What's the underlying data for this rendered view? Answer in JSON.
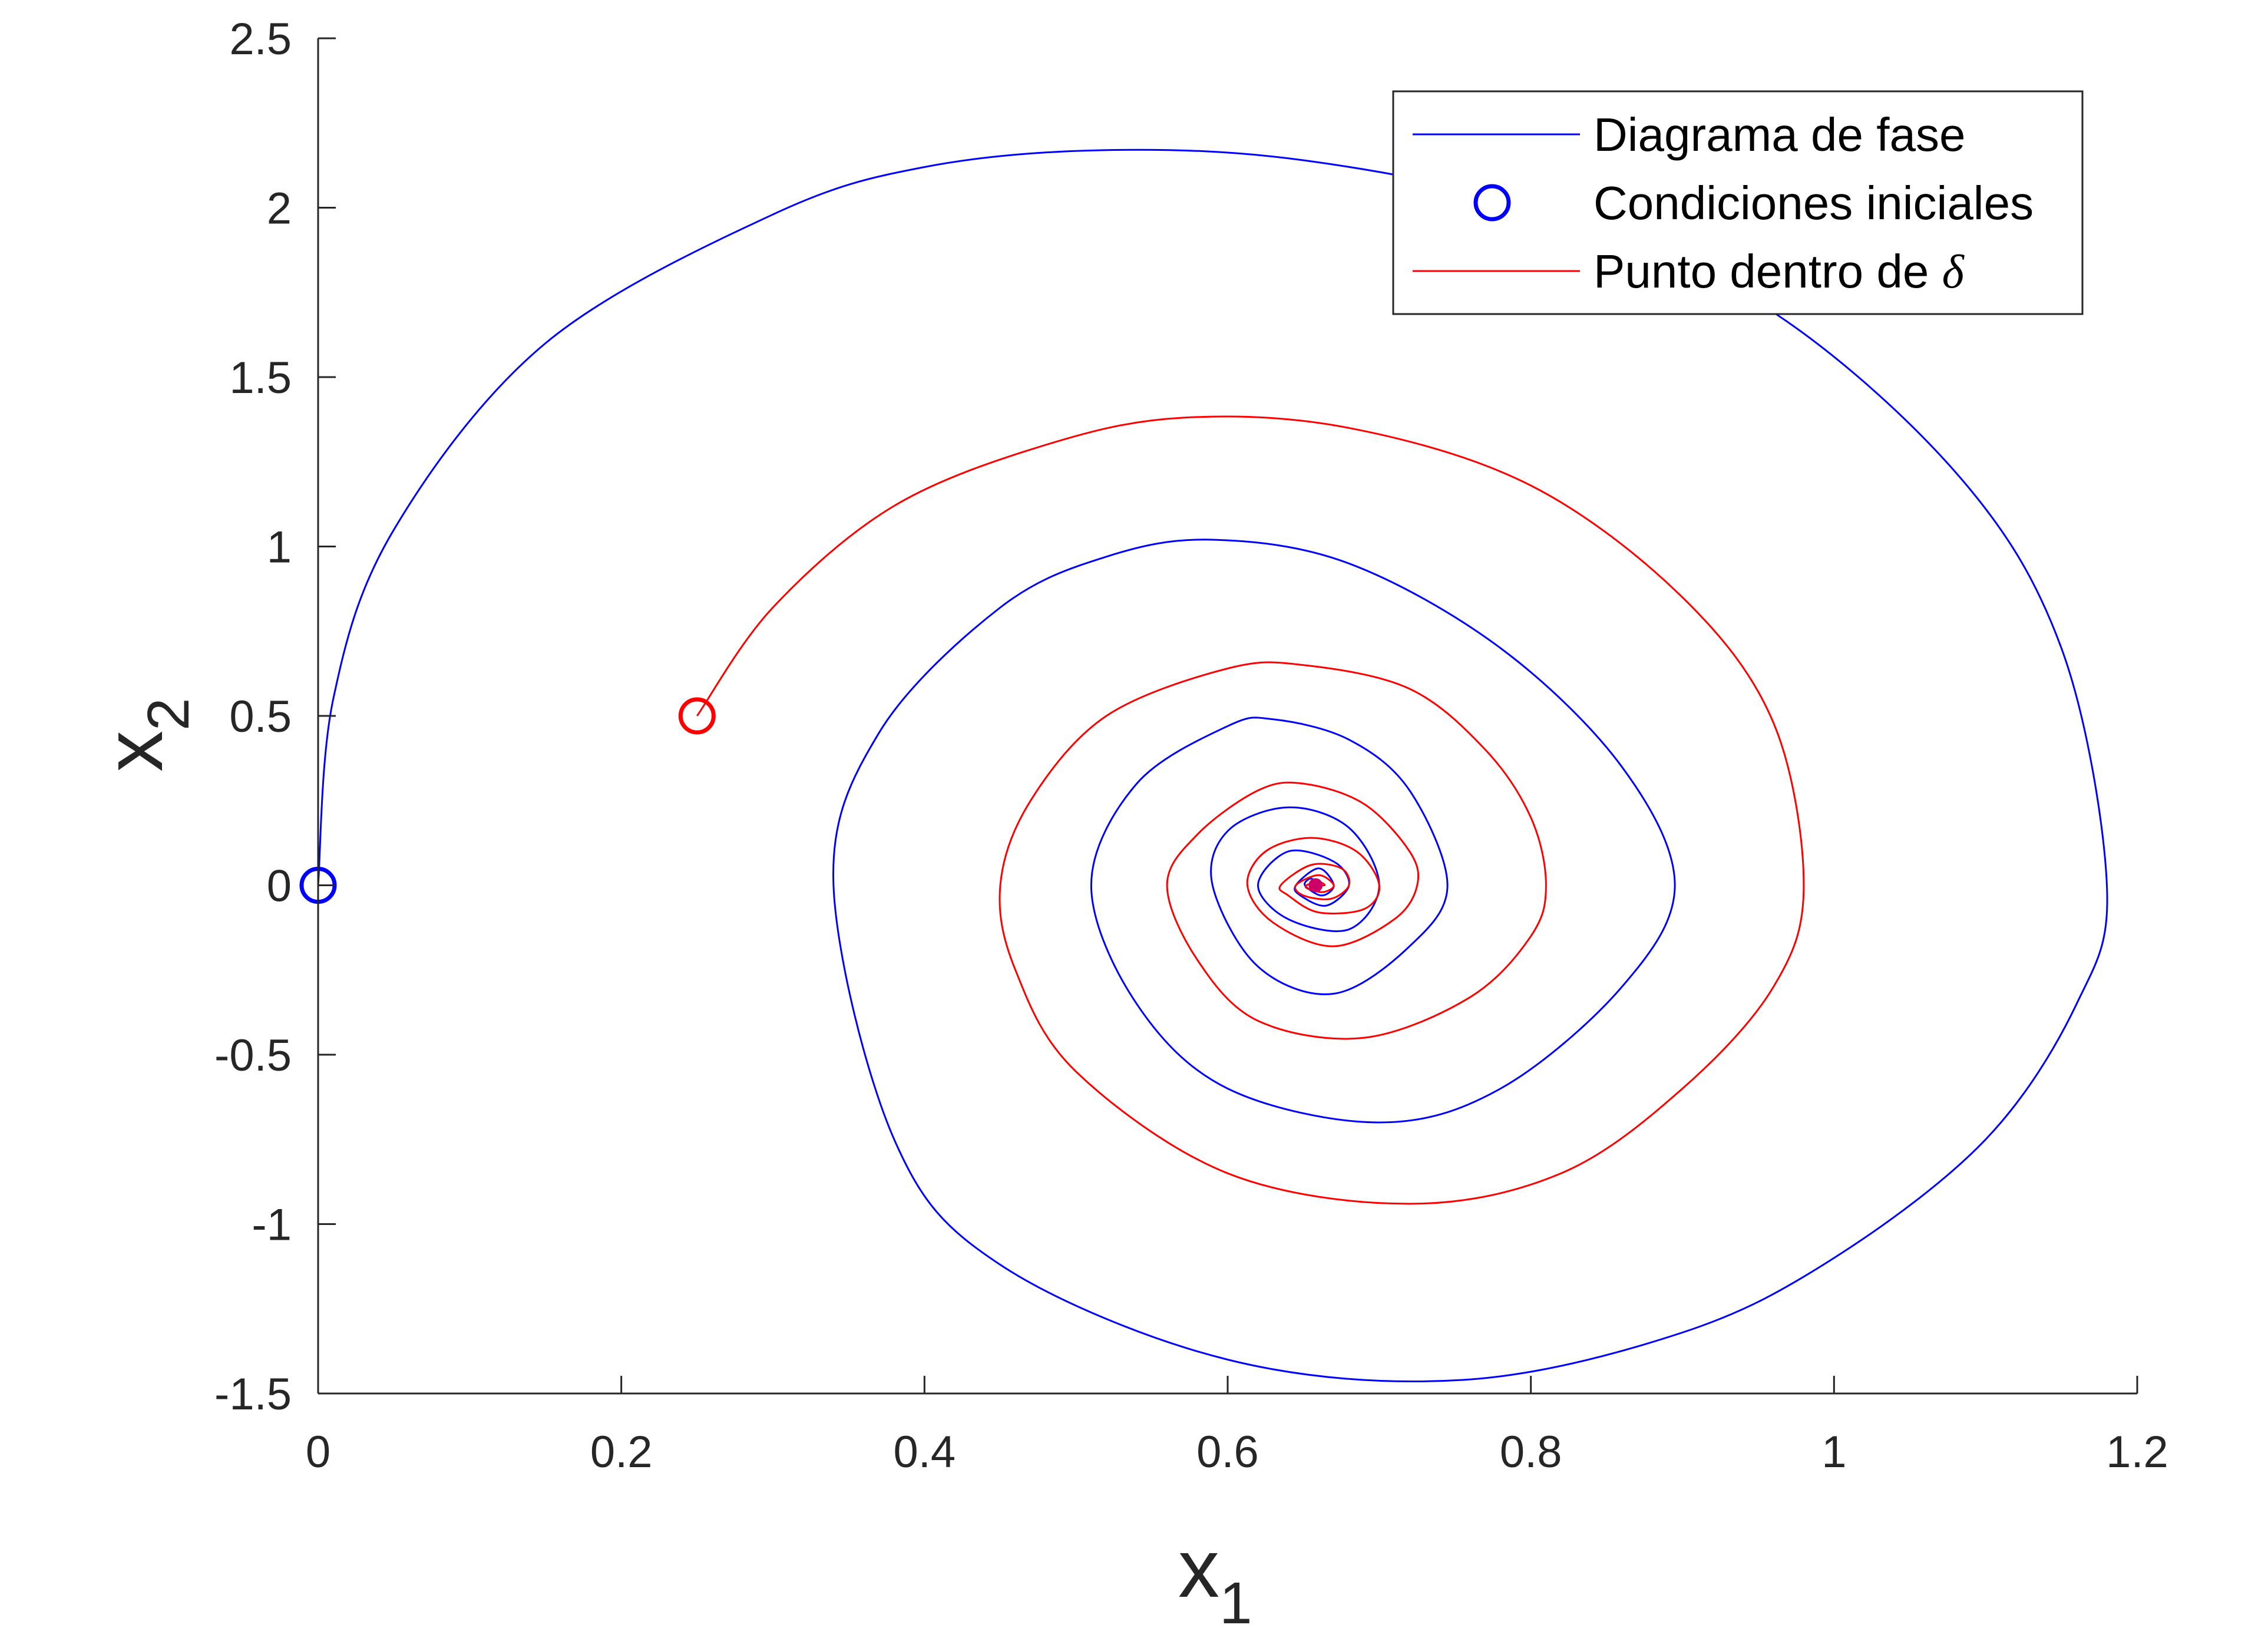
{
  "chart_data": {
    "type": "line",
    "title": "",
    "xlabel": "x",
    "xlabel_sub": "1",
    "ylabel": "x",
    "ylabel_sub": "2",
    "xlim": [
      0,
      1.2
    ],
    "ylim": [
      -1.5,
      2.5
    ],
    "xticks": [
      0,
      0.2,
      0.4,
      0.6,
      0.8,
      1,
      1.2
    ],
    "xtick_labels": [
      "0",
      "0.2",
      "0.4",
      "0.6",
      "0.8",
      "1",
      "1.2"
    ],
    "yticks": [
      -1.5,
      -1,
      -0.5,
      0,
      0.5,
      1,
      1.5,
      2,
      2.5
    ],
    "ytick_labels": [
      "-1.5",
      "-1",
      "-0.5",
      "0",
      "0.5",
      "1",
      "1.5",
      "2",
      "2.5"
    ],
    "grid": false,
    "legend_position": "top-right",
    "equilibrium": [
      0.658,
      0.0
    ],
    "series": [
      {
        "name": "Diagrama de fase",
        "color": "#0000ff",
        "initial_condition": [
          0.0,
          0.0
        ],
        "x": [
          0.0,
          0.01,
          0.05,
          0.15,
          0.3,
          0.4,
          0.52,
          0.65,
          0.8,
          0.95,
          1.08,
          1.15,
          1.18,
          1.16,
          1.1,
          1.0,
          0.9,
          0.755,
          0.6,
          0.45,
          0.38,
          0.34,
          0.37,
          0.45,
          0.52,
          0.59,
          0.68,
          0.78,
          0.86,
          0.895,
          0.86,
          0.78,
          0.7,
          0.6,
          0.54,
          0.51,
          0.54,
          0.6,
          0.63,
          0.68,
          0.72,
          0.745,
          0.72,
          0.67,
          0.62,
          0.59,
          0.6,
          0.64,
          0.68,
          0.7,
          0.68,
          0.64,
          0.62,
          0.64,
          0.67,
          0.68,
          0.665,
          0.648,
          0.645,
          0.66,
          0.67,
          0.662,
          0.651,
          0.655,
          0.66
        ],
        "y": [
          0.0,
          0.55,
          1.05,
          1.6,
          1.98,
          2.12,
          2.17,
          2.14,
          2.0,
          1.72,
          1.22,
          0.7,
          0.0,
          -0.35,
          -0.75,
          -1.1,
          -1.32,
          -1.46,
          -1.4,
          -1.12,
          -0.75,
          0.0,
          0.45,
          0.82,
          0.97,
          1.02,
          0.95,
          0.7,
          0.35,
          0.0,
          -0.3,
          -0.6,
          -0.7,
          -0.6,
          -0.35,
          0.0,
          0.3,
          0.47,
          0.49,
          0.43,
          0.28,
          0.0,
          -0.18,
          -0.32,
          -0.24,
          0.0,
          0.16,
          0.23,
          0.17,
          0.0,
          -0.13,
          -0.1,
          0.0,
          0.1,
          0.07,
          0.0,
          -0.06,
          -0.03,
          0.0,
          0.05,
          0.0,
          -0.03,
          0.0,
          0.02,
          0.0
        ]
      },
      {
        "name": "Condiciones iniciales",
        "color": "#0000ff",
        "marker": "circle",
        "points": [
          [
            0.0,
            0.0
          ],
          [
            0.25,
            0.5
          ]
        ]
      },
      {
        "name": "Punto dentro de δ",
        "legend_label": "Punto dentro de ",
        "legend_symbol": "δ",
        "color": "#ff0000",
        "initial_condition": [
          0.25,
          0.5
        ],
        "x": [
          0.25,
          0.3,
          0.38,
          0.48,
          0.57,
          0.68,
          0.8,
          0.9,
          0.96,
          0.98,
          0.96,
          0.9,
          0.82,
          0.72,
          0.6,
          0.5,
          0.46,
          0.45,
          0.47,
          0.52,
          0.6,
          0.65,
          0.72,
          0.77,
          0.8,
          0.81,
          0.8,
          0.76,
          0.69,
          0.62,
          0.58,
          0.56,
          0.58,
          0.62,
          0.65,
          0.69,
          0.72,
          0.725,
          0.71,
          0.67,
          0.63,
          0.613,
          0.625,
          0.655,
          0.685,
          0.7,
          0.69,
          0.66,
          0.64,
          0.635,
          0.655,
          0.675,
          0.68,
          0.668,
          0.65,
          0.645,
          0.66,
          0.67,
          0.663,
          0.653,
          0.652,
          0.66,
          0.664,
          0.658
        ],
        "y": [
          0.5,
          0.82,
          1.12,
          1.3,
          1.38,
          1.35,
          1.18,
          0.85,
          0.48,
          0.0,
          -0.3,
          -0.6,
          -0.85,
          -0.94,
          -0.85,
          -0.55,
          -0.25,
          0.0,
          0.25,
          0.5,
          0.64,
          0.65,
          0.58,
          0.4,
          0.2,
          0.0,
          -0.15,
          -0.33,
          -0.45,
          -0.4,
          -0.22,
          0.0,
          0.15,
          0.28,
          0.3,
          0.24,
          0.1,
          0.0,
          -0.1,
          -0.18,
          -0.11,
          0.0,
          0.1,
          0.14,
          0.1,
          0.0,
          -0.07,
          -0.08,
          -0.03,
          0.0,
          0.06,
          0.05,
          0.0,
          -0.04,
          -0.03,
          0.0,
          0.03,
          0.0,
          -0.02,
          -0.01,
          0.0,
          0.01,
          0.0,
          0.0
        ]
      }
    ]
  }
}
